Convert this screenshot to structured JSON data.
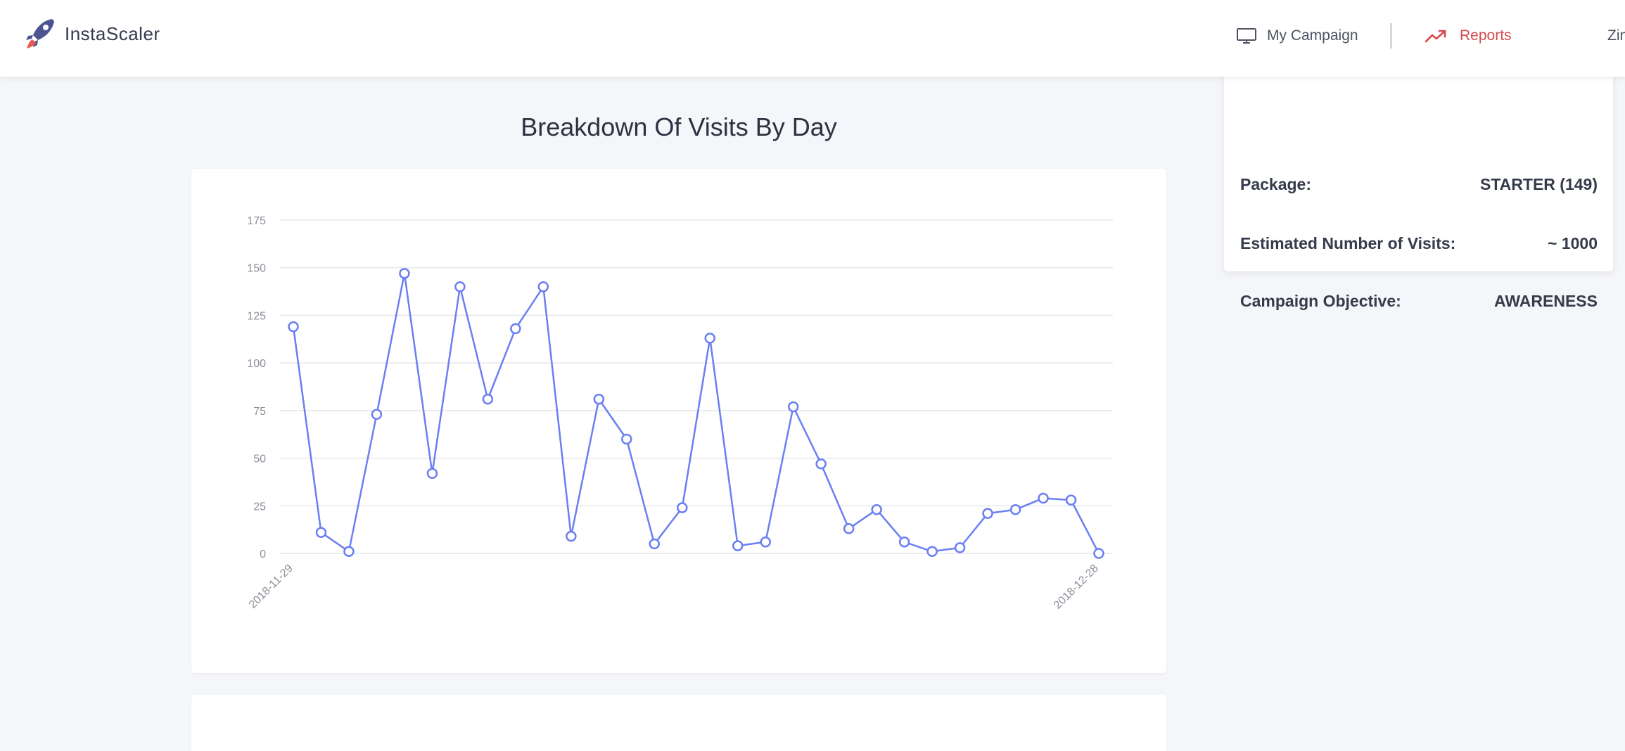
{
  "brand": {
    "name": "InstaScaler",
    "icon": "rocket-icon",
    "color": "#4c5592",
    "flame": "#e85a4f"
  },
  "nav": {
    "campaign_label": "My Campaign",
    "reports_label": "Reports",
    "user_label": "Zin",
    "reports_color": "#d34b4b"
  },
  "info": {
    "package_label": "Package:",
    "package_value": "STARTER (149)",
    "visits_label": "Estimated Number of Visits:",
    "visits_value": "~ 1000",
    "objective_label": "Campaign Objective:",
    "objective_value": "AWARENESS"
  },
  "chart_data": {
    "type": "line",
    "title": "Breakdown Of Visits By Day",
    "x_start": "2018-11-29",
    "x_end": "2018-12-28",
    "x_tick_labels": [
      "2018-11-29",
      "2018-12-28"
    ],
    "y_ticks": [
      0,
      25,
      50,
      75,
      100,
      125,
      150,
      175
    ],
    "ylim": [
      0,
      175
    ],
    "values": [
      119,
      11,
      1,
      73,
      147,
      42,
      140,
      81,
      118,
      140,
      9,
      81,
      60,
      5,
      24,
      113,
      4,
      6,
      77,
      47,
      13,
      23,
      6,
      1,
      3,
      21,
      23,
      29,
      28,
      0
    ],
    "line_color": "#6a7ff2",
    "grid": true
  }
}
